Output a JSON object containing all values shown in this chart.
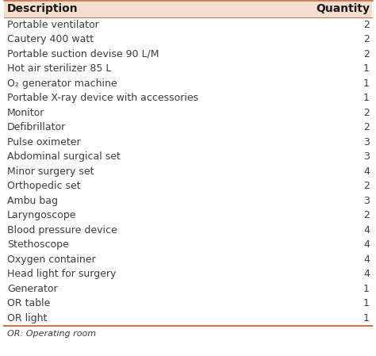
{
  "title_col1": "Description",
  "title_col2": "Quantity",
  "rows": [
    [
      "Portable ventilator",
      "2"
    ],
    [
      "Cautery 400 watt",
      "2"
    ],
    [
      "Portable suction devise 90 L/M",
      "2"
    ],
    [
      "Hot air sterilizer 85 L",
      "1"
    ],
    [
      "O₂ generator machine",
      "1"
    ],
    [
      "Portable X-ray device with accessories",
      "1"
    ],
    [
      "Monitor",
      "2"
    ],
    [
      "Defibrillator",
      "2"
    ],
    [
      "Pulse oximeter",
      "3"
    ],
    [
      "Abdominal surgical set",
      "3"
    ],
    [
      "Minor surgery set",
      "4"
    ],
    [
      "Orthopedic set",
      "2"
    ],
    [
      "Ambu bag",
      "3"
    ],
    [
      "Laryngoscope",
      "2"
    ],
    [
      "Blood pressure device",
      "4"
    ],
    [
      "Stethoscope",
      "4"
    ],
    [
      "Oxygen container",
      "4"
    ],
    [
      "Head light for surgery",
      "4"
    ],
    [
      "Generator",
      "1"
    ],
    [
      "OR table",
      "1"
    ],
    [
      "OR light",
      "1"
    ]
  ],
  "footnote": "OR: Operating room",
  "header_bg": "#f5ddd0",
  "header_text_color": "#1a1a1a",
  "row_text_color": "#3d3d3d",
  "footnote_text_color": "#3d3d3d",
  "border_color": "#c8784a",
  "header_fontsize": 10.0,
  "row_fontsize": 9.0,
  "footnote_fontsize": 8.0
}
